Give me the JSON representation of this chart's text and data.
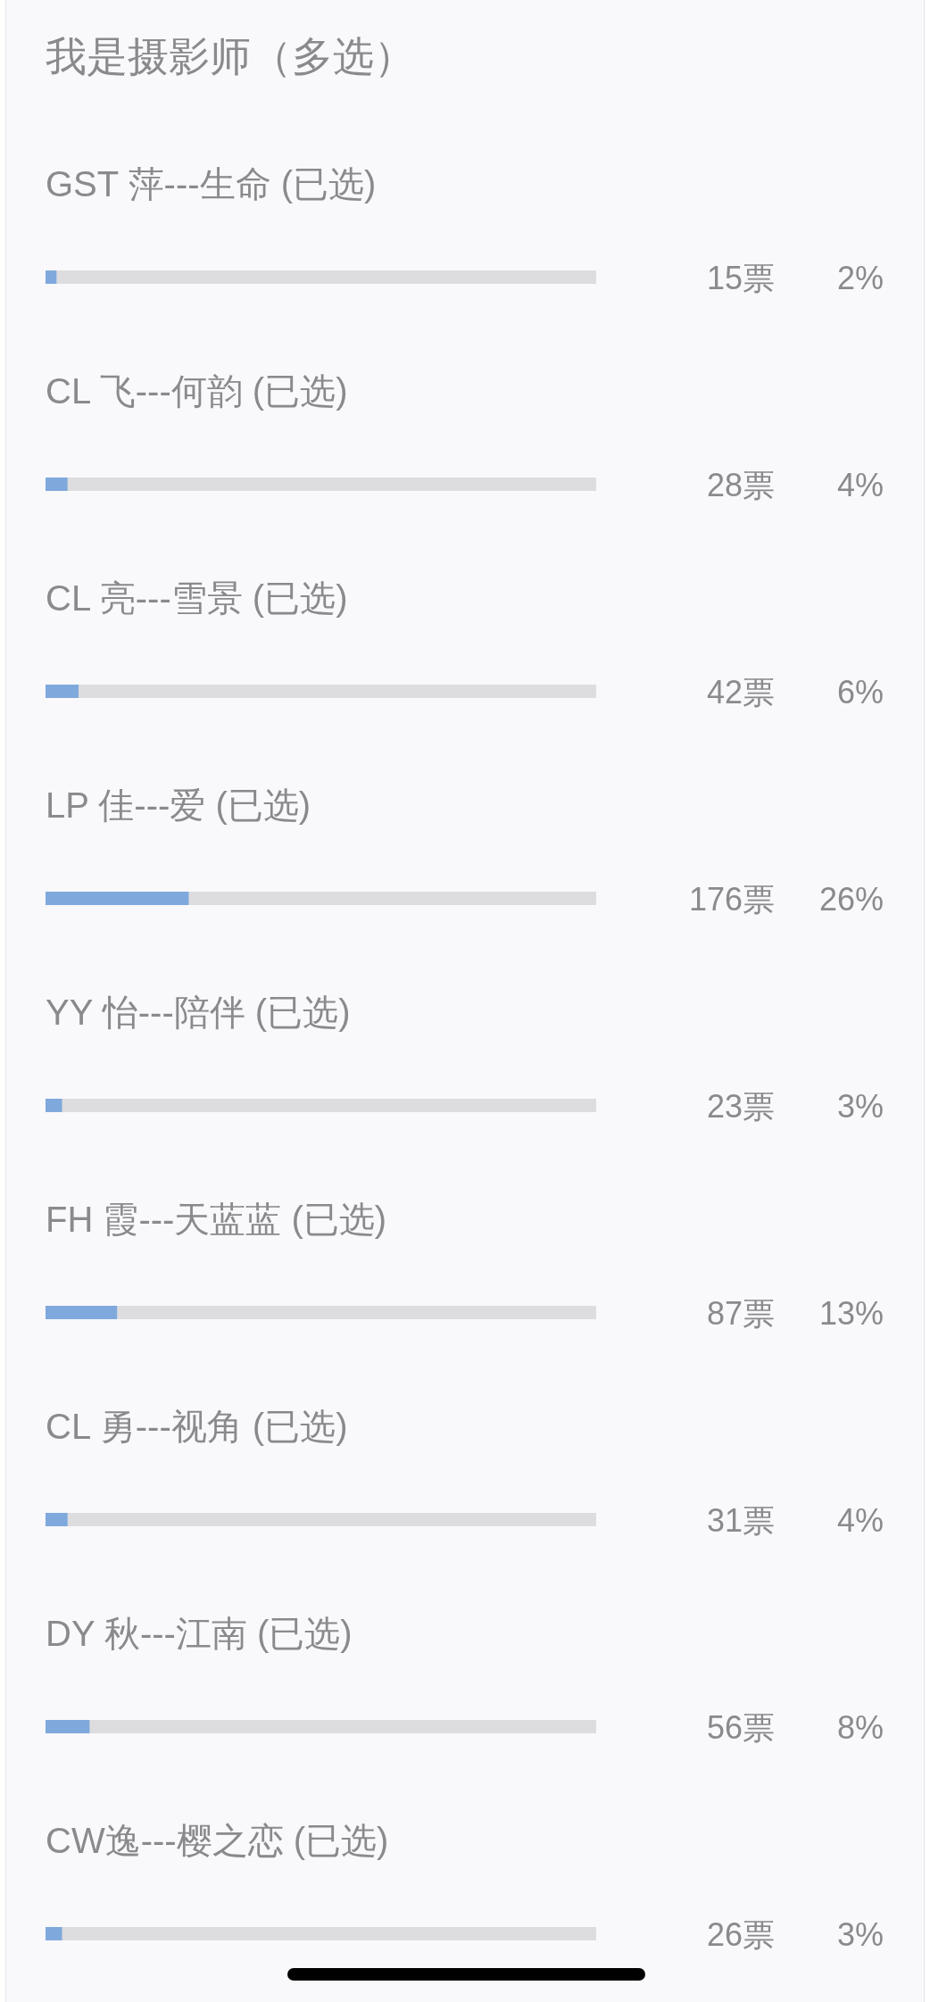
{
  "chart_data": {
    "type": "bar",
    "orientation": "horizontal",
    "title": "我是摄影师（多选）",
    "categories": [
      "GST 萍---生命 (已选)",
      "CL 飞---何韵 (已选)",
      "CL 亮---雪景 (已选)",
      "LP 佳---爱 (已选)",
      "YY 怡---陪伴 (已选)",
      "FH 霞---天蓝蓝 (已选)",
      "CL 勇---视角 (已选)",
      "DY 秋---江南 (已选)",
      "CW逸---樱之恋 (已选)"
    ],
    "values": [
      2,
      4,
      6,
      26,
      3,
      13,
      4,
      8,
      3
    ],
    "value_labels": [
      "2%",
      "4%",
      "6%",
      "26%",
      "3%",
      "13%",
      "4%",
      "8%",
      "3%"
    ],
    "annotations": [
      "15票",
      "28票",
      "42票",
      "176票",
      "23票",
      "87票",
      "31票",
      "56票",
      "26票"
    ],
    "color": "#7fa9dc",
    "xlim": [
      0,
      100
    ],
    "tick_labels": "y"
  }
}
